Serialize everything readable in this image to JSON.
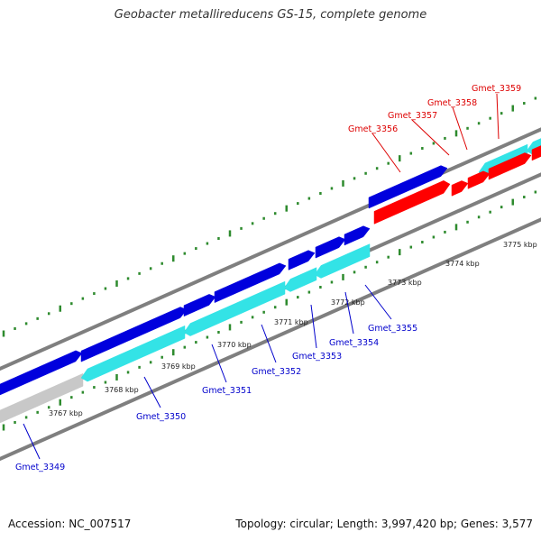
{
  "title": "Geobacter metallireducens GS-15, complete genome",
  "footer": {
    "accession": "Accession: NC_007517",
    "summary": "Topology: circular; Length: 3,997,420 bp; Genes: 3,577"
  },
  "scale": {
    "unit": "kbp",
    "labels": [
      "3767 kbp",
      "3768 kbp",
      "3769 kbp",
      "3770 kbp",
      "3771 kbp",
      "3772 kbp",
      "3773 kbp",
      "3774 kbp",
      "3775 kbp"
    ]
  },
  "colors": {
    "forward_gene": "#0000dd",
    "reverse_gene": "#33e3e6",
    "highlight_gene": "#ff0000",
    "backbone": "#7f7f7f",
    "ticks": "#2e8b2e",
    "forward_label": "#0000cc",
    "highlight_label": "#dd0000",
    "other_feature": "#c8c8c8"
  },
  "genes": {
    "lower_labels": [
      "Gmet_3349",
      "Gmet_3350",
      "Gmet_3351",
      "Gmet_3352",
      "Gmet_3353",
      "Gmet_3354",
      "Gmet_3355"
    ],
    "upper_labels": [
      "Gmet_3356",
      "Gmet_3357",
      "Gmet_3358",
      "Gmet_3359"
    ]
  }
}
